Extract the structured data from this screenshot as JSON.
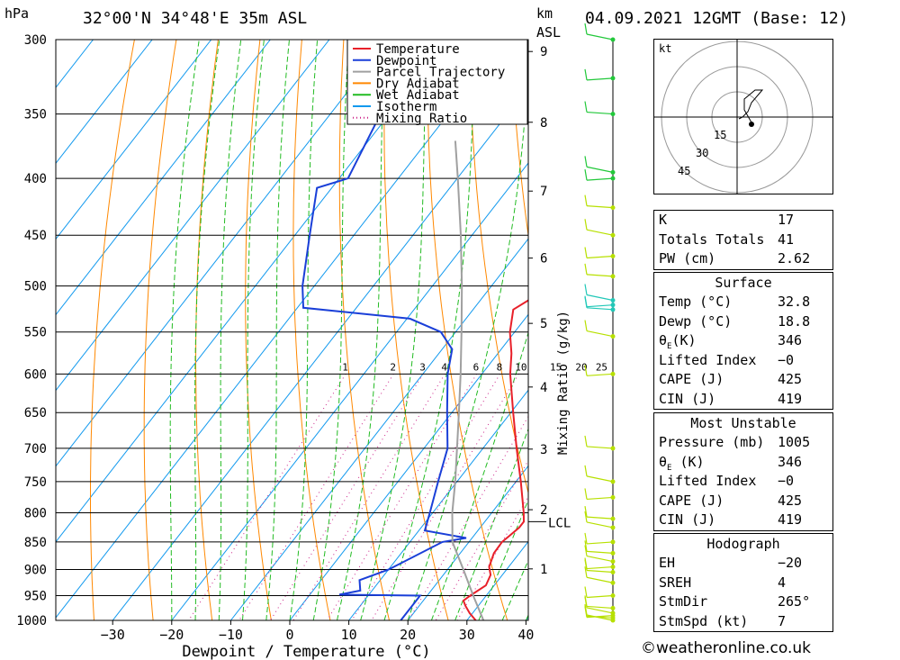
{
  "header": {
    "pressure_unit": "hPa",
    "location": "32°00'N  34°48'E  35m  ASL",
    "height_unit_top": "km",
    "height_unit_bottom": "ASL",
    "datetime": "04.09.2021  12GMT  (Base: 12)"
  },
  "footer": {
    "copyright": "©weatheronline.co.uk"
  },
  "chart_data": {
    "type": "line",
    "xlabel": "Dewpoint / Temperature (°C)",
    "ylabel": "",
    "y_scale": "log-pressure",
    "pressure_levels": [
      300,
      350,
      400,
      450,
      500,
      550,
      600,
      650,
      700,
      750,
      800,
      850,
      900,
      950,
      1000
    ],
    "x_ticks": [
      -30,
      -20,
      -10,
      0,
      10,
      20,
      30,
      40
    ],
    "xlim": [
      -40,
      40
    ],
    "ylim": [
      1000,
      300
    ],
    "height_ticks_km": [
      1,
      2,
      3,
      4,
      5,
      6,
      7,
      8,
      9
    ],
    "lcl_label": "LCL",
    "lcl_pressure": 815,
    "mixing_ratio_axis_label": "Mixing Ratio (g/kg)",
    "mixing_ratio_labels": [
      "1",
      "2",
      "3",
      "4",
      "6",
      "8",
      "10",
      "15",
      "20",
      "25"
    ],
    "legend": [
      "Temperature",
      "Dewpoint",
      "Parcel Trajectory",
      "Dry Adiabat",
      "Wet Adiabat",
      "Isotherm",
      "Mixing Ratio"
    ],
    "colors": {
      "temperature": "#e8202a",
      "dewpoint": "#1a3fd8",
      "parcel": "#a0a0a0",
      "dry_adiabat": "#ff8800",
      "wet_adiabat": "#22bb22",
      "isotherm": "#1199ee",
      "mixing_ratio": "#cc2288",
      "wind_barb": "#b7e000"
    },
    "series": [
      {
        "name": "Temperature",
        "points": [
          [
            1000,
            31.5
          ],
          [
            985,
            29.5
          ],
          [
            970,
            27.8
          ],
          [
            960,
            26.8
          ],
          [
            950,
            27.3
          ],
          [
            930,
            28.6
          ],
          [
            910,
            28.0
          ],
          [
            895,
            26.7
          ],
          [
            870,
            25.7
          ],
          [
            850,
            25.6
          ],
          [
            840,
            26.0
          ],
          [
            825,
            26.6
          ],
          [
            815,
            26.6
          ],
          [
            800,
            25.4
          ],
          [
            750,
            20.8
          ],
          [
            700,
            15.7
          ],
          [
            650,
            10.4
          ],
          [
            600,
            4.8
          ],
          [
            575,
            2.3
          ],
          [
            550,
            -0.8
          ],
          [
            525,
            -3.2
          ],
          [
            510,
            -1.2
          ],
          [
            500,
            -3.0
          ],
          [
            450,
            -8.5
          ],
          [
            400,
            -14.9
          ],
          [
            350,
            -22.7
          ],
          [
            300,
            -32.6
          ]
        ]
      },
      {
        "name": "Dewpoint",
        "points": [
          [
            1000,
            18.8
          ],
          [
            950,
            18.8
          ],
          [
            948,
            5.0
          ],
          [
            940,
            8.0
          ],
          [
            920,
            6.5
          ],
          [
            900,
            10.0
          ],
          [
            850,
            15.5
          ],
          [
            843,
            19.0
          ],
          [
            830,
            11.0
          ],
          [
            800,
            9.5
          ],
          [
            750,
            6.8
          ],
          [
            700,
            4.0
          ],
          [
            650,
            -0.8
          ],
          [
            600,
            -5.8
          ],
          [
            570,
            -8.3
          ],
          [
            550,
            -12.5
          ],
          [
            535,
            -19.5
          ],
          [
            523,
            -39.0
          ],
          [
            500,
            -42.0
          ],
          [
            450,
            -47.5
          ],
          [
            408,
            -52.5
          ],
          [
            400,
            -48.5
          ],
          [
            350,
            -51.5
          ],
          [
            314,
            -54.0
          ],
          [
            300,
            -63.0
          ]
        ]
      },
      {
        "name": "Parcel Trajectory",
        "points": [
          [
            1000,
            32.8
          ],
          [
            950,
            27.8
          ],
          [
            900,
            22.7
          ],
          [
            850,
            17.2
          ],
          [
            815,
            14.5
          ],
          [
            800,
            13.3
          ],
          [
            750,
            9.7
          ],
          [
            700,
            5.6
          ],
          [
            650,
            1.2
          ],
          [
            600,
            -3.6
          ],
          [
            550,
            -9.0
          ],
          [
            500,
            -15.0
          ],
          [
            450,
            -21.9
          ],
          [
            400,
            -29.9
          ],
          [
            370,
            -35.3
          ]
        ]
      }
    ],
    "wind_barbs_pressure": [
      1000,
      995,
      990,
      985,
      975,
      950,
      925,
      905,
      895,
      885,
      870,
      850,
      825,
      810,
      775,
      750,
      700,
      600,
      555,
      525,
      520,
      515,
      490,
      470,
      450,
      425,
      400,
      395,
      350,
      325,
      300
    ]
  },
  "stability_panel": {
    "k_label": "K",
    "k_value": "17",
    "tt_label": "Totals Totals",
    "tt_value": "41",
    "pw_label": "PW (cm)",
    "pw_value": "2.62"
  },
  "surface_panel": {
    "title": "Surface",
    "temp_label": "Temp (°C)",
    "temp_value": "32.8",
    "dewp_label": "Dewp (°C)",
    "dewp_value": "18.8",
    "theta_label": "θ",
    "theta_sub": "E",
    "theta_unit": "(K)",
    "theta_value": "346",
    "li_label": "Lifted Index",
    "li_value": "−0",
    "cape_label": "CAPE (J)",
    "cape_value": "425",
    "cin_label": "CIN (J)",
    "cin_value": "419"
  },
  "unstable_panel": {
    "title": "Most Unstable",
    "pres_label": "Pressure (mb)",
    "pres_value": "1005",
    "theta_label": "θ",
    "theta_sub": "E",
    "theta_unit": " (K)",
    "theta_value": "346",
    "li_label": "Lifted Index",
    "li_value": "−0",
    "cape_label": "CAPE (J)",
    "cape_value": "425",
    "cin_label": "CIN (J)",
    "cin_value": "419"
  },
  "hodograph_panel": {
    "title": "Hodograph",
    "eh_label": "EH",
    "eh_value": "−20",
    "sreh_label": "SREH",
    "sreh_value": "4",
    "stmdir_label": "StmDir",
    "stmdir_value": "265°",
    "stmspd_label": "StmSpd (kt)",
    "stmspd_value": "7"
  },
  "hodograph": {
    "unit": "kt",
    "ring_labels": [
      "15",
      "30",
      "45"
    ]
  }
}
